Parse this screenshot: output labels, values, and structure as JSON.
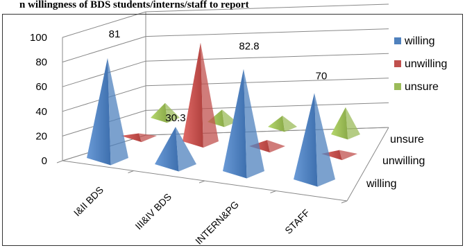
{
  "chart_data": {
    "type": "bar",
    "title": "n willingness of BDS students/interns/staff to report",
    "categories": [
      "I&II BDS",
      "III&IV BDS",
      "INTERN&PG",
      "STAFF"
    ],
    "depth_labels": [
      "unsure",
      "unwilling",
      "willing"
    ],
    "series": [
      {
        "name": "willing",
        "values": [
          81,
          30.3,
          82.8,
          70
        ],
        "color": "#4f81bd"
      },
      {
        "name": "unwilling",
        "values": [
          2,
          80,
          5,
          3
        ],
        "color": "#c0504d"
      },
      {
        "name": "unsure",
        "values": [
          12,
          10,
          9,
          22
        ],
        "color": "#9bbb59"
      }
    ],
    "data_labels": [
      {
        "series": "willing",
        "category": "I&II BDS",
        "text": "81"
      },
      {
        "series": "willing",
        "category": "III&IV BDS",
        "text": "30.3"
      },
      {
        "series": "willing",
        "category": "INTERN&PG",
        "text": "82.8"
      },
      {
        "series": "willing",
        "category": "STAFF",
        "text": "70"
      }
    ],
    "ylim": [
      0,
      100
    ],
    "yticks": [
      "0",
      "20",
      "40",
      "60",
      "80",
      "100"
    ],
    "grid": true,
    "legend_position": "right"
  }
}
